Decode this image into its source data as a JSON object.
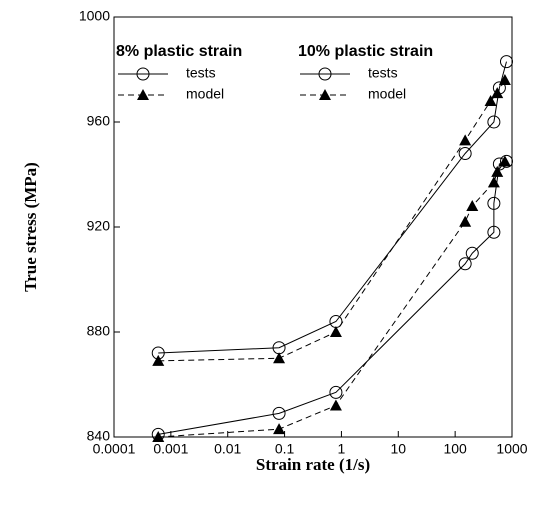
{
  "chart_data": {
    "type": "line",
    "xlabel": "Strain rate (1/s)",
    "ylabel": "True stress (MPa)",
    "xscale": "log",
    "xlim": [
      0.0001,
      1000
    ],
    "xticks": [
      0.0001,
      0.001,
      0.01,
      0.1,
      1,
      10,
      100,
      1000
    ],
    "ylim": [
      840,
      1000
    ],
    "yticks": [
      840,
      880,
      920,
      960,
      1000
    ],
    "series": [
      {
        "name": "tests",
        "group": "8% plastic strain",
        "marker": "circle",
        "dash": false,
        "color": "#000000",
        "x": [
          0.0006,
          0.08,
          0.8,
          150,
          200,
          480,
          480,
          600,
          800
        ],
        "values": [
          841,
          849,
          857,
          906,
          910,
          918,
          929,
          944,
          945
        ]
      },
      {
        "name": "model",
        "group": "8% plastic strain",
        "marker": "triangle",
        "dash": true,
        "color": "#000000",
        "x": [
          0.0006,
          0.08,
          0.8,
          150,
          200,
          480,
          550,
          750
        ],
        "values": [
          840,
          843,
          852,
          922,
          928,
          937,
          941,
          945
        ]
      },
      {
        "name": "tests",
        "group": "10% plastic strain",
        "marker": "circle",
        "dash": false,
        "color": "#000000",
        "x": [
          0.0006,
          0.08,
          0.8,
          150,
          480,
          600,
          800
        ],
        "values": [
          872,
          874,
          884,
          948,
          960,
          973,
          983
        ]
      },
      {
        "name": "model",
        "group": "10% plastic strain",
        "marker": "triangle",
        "dash": true,
        "color": "#000000",
        "x": [
          0.0006,
          0.08,
          0.8,
          150,
          420,
          550,
          750
        ],
        "values": [
          869,
          870,
          880,
          953,
          968,
          971,
          976
        ]
      }
    ]
  }
}
